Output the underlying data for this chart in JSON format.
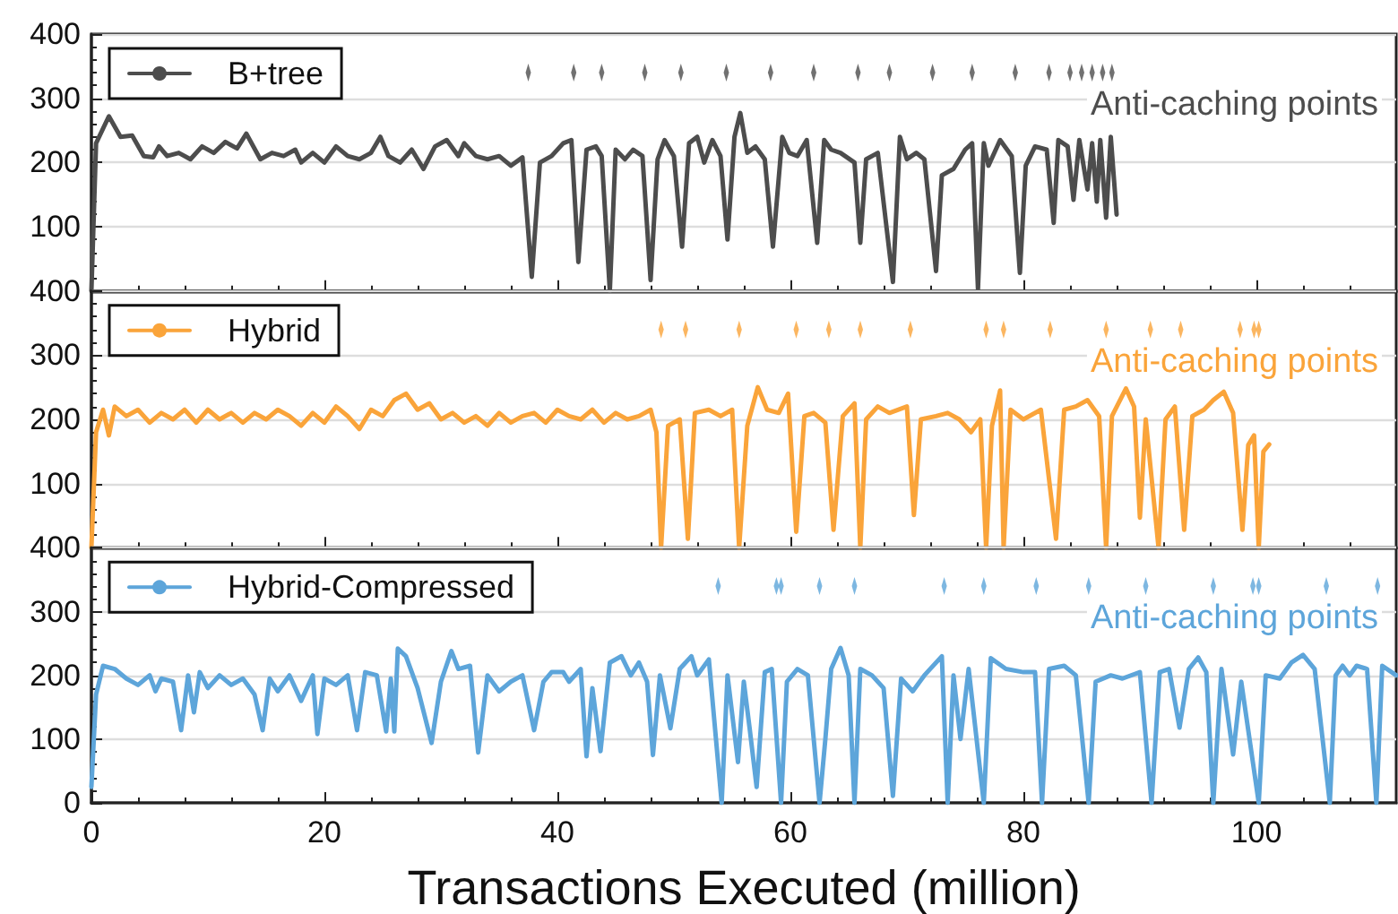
{
  "chart_data": [
    {
      "type": "line",
      "xlim": [
        0,
        112
      ],
      "xticks": [
        0,
        20,
        40,
        60,
        80,
        100
      ],
      "ylim": [
        0,
        400
      ],
      "yticks": [
        {
          "value": 0,
          "label": null
        },
        100,
        200,
        300,
        400
      ],
      "grid": "y",
      "legend": "top left",
      "tick_labels": "y",
      "series": [
        {
          "name": "B+tree",
          "color": "#4d4d4d",
          "x": [
            0,
            0.4,
            1.5,
            2.5,
            3.5,
            4.5,
            5.3,
            5.8,
            6.5,
            7.5,
            8.5,
            9.5,
            10.5,
            11.5,
            12.5,
            13.3,
            14.5,
            15.5,
            16.5,
            17.5,
            18,
            19,
            20,
            21,
            22,
            23,
            24,
            24.8,
            25.5,
            26.5,
            27.5,
            28.5,
            29.5,
            30.5,
            31.5,
            32,
            33,
            34,
            35,
            36,
            37,
            37.8,
            38.5,
            39.5,
            40.5,
            41.2,
            41.8,
            42.5,
            43.3,
            43.8,
            44.5,
            45,
            45.8,
            46.5,
            47.3,
            48,
            48.6,
            49.2,
            50,
            50.7,
            51.3,
            52,
            52.6,
            53.3,
            54,
            54.6,
            55.2,
            55.7,
            56.3,
            57,
            57.8,
            58.5,
            59.3,
            59.9,
            60.6,
            61.4,
            62.3,
            62.9,
            63.5,
            64.3,
            65.5,
            66,
            66.5,
            67.5,
            68.8,
            69.4,
            70,
            70.8,
            71.5,
            72.5,
            73,
            74,
            75,
            75.6,
            76.1,
            76.6,
            77,
            78,
            79,
            79.7,
            80.2,
            81,
            82,
            82.6,
            83,
            83.8,
            84.3,
            84.8,
            85.5,
            85.9,
            86.3,
            86.6,
            87.1,
            87.5,
            88
          ],
          "values": [
            0,
            230,
            272,
            240,
            242,
            210,
            208,
            225,
            210,
            215,
            205,
            225,
            215,
            232,
            222,
            245,
            205,
            215,
            210,
            220,
            200,
            215,
            200,
            225,
            210,
            205,
            215,
            240,
            210,
            200,
            220,
            190,
            225,
            235,
            210,
            230,
            210,
            205,
            210,
            195,
            208,
            22,
            200,
            210,
            230,
            235,
            45,
            220,
            225,
            210,
            0,
            220,
            205,
            220,
            210,
            17,
            205,
            235,
            210,
            69,
            230,
            240,
            200,
            235,
            210,
            80,
            240,
            277,
            215,
            225,
            205,
            69,
            240,
            215,
            210,
            235,
            75,
            235,
            220,
            215,
            200,
            75,
            205,
            215,
            14,
            240,
            205,
            215,
            205,
            31,
            180,
            190,
            220,
            230,
            3,
            230,
            195,
            235,
            210,
            28,
            195,
            225,
            220,
            106,
            235,
            225,
            142,
            235,
            158,
            230,
            139,
            235,
            114,
            240,
            119
          ]
        },
        {
          "name": "Anti-caching points",
          "type": "scatter",
          "color": "#4d4d4d",
          "x": [
            37.5,
            41.4,
            43.8,
            47.5,
            50.6,
            54.5,
            58.3,
            62.0,
            65.8,
            68.5,
            72.2,
            75.6,
            79.3,
            82.2,
            84.0,
            85.0,
            85.9,
            86.8,
            87.6
          ],
          "values": [
            340,
            340,
            340,
            340,
            340,
            340,
            340,
            340,
            340,
            340,
            340,
            340,
            340,
            340,
            340,
            340,
            340,
            340,
            340
          ]
        }
      ]
    },
    {
      "type": "line",
      "xlim": [
        0,
        112
      ],
      "xticks": [
        0,
        20,
        40,
        60,
        80,
        100
      ],
      "ylim": [
        0,
        400
      ],
      "yticks": [
        {
          "value": 0,
          "label": null
        },
        100,
        200,
        300,
        400
      ],
      "grid": "y",
      "legend": "top left",
      "tick_labels": "y",
      "series": [
        {
          "name": "Hybrid",
          "color": "#faa43a",
          "x": [
            0,
            0.4,
            1,
            1.5,
            2,
            3,
            4,
            5,
            6,
            7,
            8,
            9,
            10,
            11,
            12,
            13,
            14,
            15,
            16,
            17,
            18,
            19,
            20,
            21,
            22,
            23,
            24,
            25,
            26,
            27,
            28,
            29,
            30,
            31,
            32,
            33,
            34,
            35,
            36,
            37,
            38,
            39,
            40,
            41,
            42,
            43,
            44,
            45,
            46,
            47,
            48,
            48.5,
            48.9,
            49.5,
            50.5,
            51.2,
            51.8,
            53,
            54,
            55,
            55.6,
            56.3,
            57.2,
            58,
            59,
            59.8,
            60.5,
            61.2,
            62,
            63,
            63.7,
            64.5,
            65.5,
            66,
            66.5,
            67.5,
            68.5,
            70,
            70.6,
            71.2,
            72.5,
            73.5,
            74.5,
            75.5,
            76.3,
            76.8,
            77.3,
            78,
            78.3,
            78.9,
            80,
            81.5,
            82.8,
            83.5,
            84.5,
            85.5,
            86.5,
            87.1,
            87.6,
            88.8,
            89.5,
            90,
            90.5,
            91.6,
            92.2,
            93,
            93.8,
            94.5,
            95.5,
            96.3,
            97.2,
            98,
            98.8,
            99.3,
            99.8,
            100.2,
            100.6,
            101.1
          ],
          "values": [
            0,
            180,
            215,
            175,
            220,
            205,
            215,
            195,
            210,
            200,
            215,
            195,
            215,
            200,
            210,
            195,
            210,
            200,
            215,
            205,
            190,
            210,
            195,
            220,
            205,
            185,
            215,
            205,
            230,
            240,
            215,
            225,
            200,
            210,
            195,
            205,
            190,
            210,
            195,
            205,
            210,
            195,
            215,
            205,
            200,
            215,
            195,
            210,
            200,
            205,
            215,
            180,
            0,
            190,
            200,
            14,
            210,
            215,
            205,
            215,
            0,
            190,
            250,
            215,
            210,
            240,
            25,
            205,
            210,
            195,
            28,
            205,
            225,
            0,
            200,
            220,
            210,
            220,
            51,
            200,
            205,
            210,
            200,
            180,
            200,
            0,
            190,
            245,
            0,
            215,
            200,
            215,
            14,
            215,
            220,
            230,
            205,
            0,
            205,
            248,
            220,
            47,
            200,
            0,
            200,
            220,
            28,
            205,
            215,
            230,
            243,
            210,
            28,
            160,
            175,
            0,
            150,
            161
          ]
        },
        {
          "name": "Anti-caching points",
          "type": "scatter",
          "color": "#faa43a",
          "x": [
            48.9,
            51.0,
            55.6,
            60.5,
            63.3,
            66.0,
            70.3,
            76.8,
            78.3,
            82.3,
            87.1,
            90.9,
            93.5,
            98.6,
            99.8,
            100.2
          ],
          "values": [
            340,
            340,
            340,
            340,
            340,
            340,
            340,
            340,
            340,
            340,
            340,
            340,
            340,
            340,
            340,
            340
          ]
        }
      ]
    },
    {
      "type": "line",
      "xlim": [
        0,
        112
      ],
      "xticks": [
        0,
        20,
        40,
        60,
        80,
        100
      ],
      "ylim": [
        0,
        400
      ],
      "yticks": [
        0,
        100,
        200,
        300,
        400
      ],
      "grid": "y",
      "legend": "top left",
      "xlabel": "Transactions Executed (million)",
      "series": [
        {
          "name": "Hybrid-Compressed",
          "color": "#5da5da",
          "x": [
            0,
            0.4,
            1,
            2,
            3,
            4,
            5,
            5.5,
            6,
            7,
            7.7,
            8.3,
            8.8,
            9.3,
            10,
            11,
            12,
            13,
            14,
            14.7,
            15.3,
            16,
            17,
            18,
            19,
            19.4,
            20,
            21,
            22,
            22.8,
            23.5,
            24.5,
            25.3,
            25.7,
            26,
            26.3,
            27,
            28,
            29.2,
            30,
            30.9,
            31.5,
            32.5,
            33.2,
            34,
            35,
            36,
            37,
            38,
            38.8,
            39.5,
            40.5,
            41,
            42,
            42.5,
            43,
            43.7,
            44.5,
            45.5,
            46.3,
            47,
            47.7,
            48.2,
            48.8,
            49.7,
            50.5,
            51.5,
            52,
            53,
            54.1,
            54.6,
            55.5,
            56,
            56.5,
            57.1,
            57.8,
            58.4,
            59.2,
            59.7,
            60.6,
            61.5,
            62.5,
            63,
            63.5,
            64.3,
            65,
            65.5,
            66,
            67,
            68,
            68.8,
            69.5,
            70.5,
            71.5,
            73,
            73.5,
            74,
            74.6,
            75.3,
            76.6,
            77.2,
            78.5,
            80,
            81,
            81.6,
            82.2,
            83.5,
            84.5,
            85.6,
            86.2,
            87.5,
            88.5,
            90,
            91,
            91.7,
            92.5,
            93.4,
            94.2,
            95,
            95.7,
            96.3,
            97,
            98,
            98.7,
            100.2,
            100.8,
            102,
            103,
            104,
            105,
            106.3,
            106.8,
            107.4,
            108,
            108.6,
            109.5,
            110.3,
            110.8,
            112
          ],
          "values": [
            25,
            170,
            215,
            210,
            195,
            185,
            200,
            175,
            195,
            190,
            114,
            200,
            142,
            205,
            180,
            200,
            185,
            195,
            170,
            114,
            195,
            175,
            200,
            160,
            200,
            108,
            195,
            185,
            200,
            114,
            205,
            200,
            112,
            195,
            112,
            242,
            230,
            180,
            94,
            190,
            238,
            210,
            215,
            79,
            200,
            175,
            190,
            200,
            114,
            190,
            205,
            205,
            190,
            210,
            73,
            180,
            81,
            220,
            230,
            200,
            220,
            190,
            75,
            200,
            117,
            210,
            230,
            200,
            225,
            0,
            200,
            64,
            190,
            117,
            25,
            205,
            210,
            0,
            190,
            210,
            200,
            0,
            100,
            210,
            243,
            200,
            0,
            210,
            200,
            180,
            11,
            195,
            175,
            200,
            230,
            0,
            200,
            100,
            210,
            0,
            227,
            210,
            205,
            205,
            0,
            210,
            215,
            200,
            0,
            190,
            200,
            195,
            205,
            0,
            205,
            210,
            118,
            210,
            228,
            205,
            0,
            210,
            76,
            190,
            0,
            200,
            195,
            220,
            232,
            210,
            0,
            200,
            215,
            200,
            215,
            210,
            0,
            215,
            200
          ]
        },
        {
          "name": "Anti-caching points",
          "type": "scatter",
          "color": "#5da5da",
          "x": [
            53.8,
            58.8,
            59.2,
            62.5,
            65.5,
            73.2,
            76.6,
            81.1,
            85.6,
            90.5,
            96.3,
            99.7,
            100.2,
            106.0,
            110.4
          ],
          "values": [
            340,
            340,
            340,
            340,
            340,
            340,
            340,
            340,
            340,
            340,
            340,
            340,
            340,
            340,
            340
          ]
        }
      ]
    }
  ]
}
